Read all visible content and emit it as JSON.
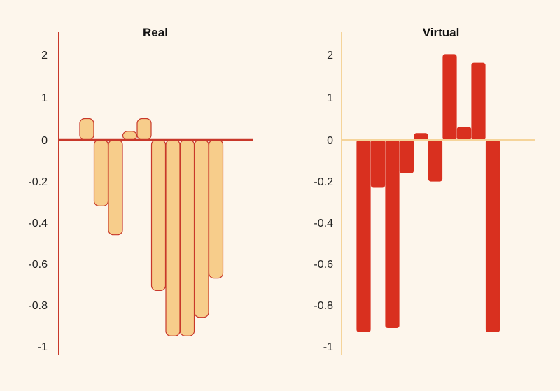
{
  "chart_data": [
    {
      "type": "bar",
      "title": "Real",
      "colors": {
        "bar_fill": "#f7cd8b",
        "bar_stroke": "#c8382a",
        "axis": "#c8382a"
      },
      "y_ticks": [
        "2",
        "1",
        "0",
        "-0.2",
        "-0.4",
        "-0.6",
        "-0.8",
        "-1"
      ],
      "y_tick_values": [
        2,
        1,
        0,
        -0.2,
        -0.4,
        -0.6,
        -0.8,
        -1
      ],
      "values": [
        0.5,
        -0.32,
        -0.46,
        0.2,
        0.5,
        -0.73,
        -0.95,
        -0.95,
        -0.86,
        -0.67
      ]
    },
    {
      "type": "bar",
      "title": "Virtual",
      "colors": {
        "bar_fill": "#d9301f",
        "bar_stroke": "#d9301f",
        "axis": "#f5d49a"
      },
      "y_ticks": [
        "2",
        "1",
        "0",
        "-0.2",
        "-0.4",
        "-0.6",
        "-0.8",
        "-1"
      ],
      "y_tick_values": [
        2,
        1,
        0,
        -0.2,
        -0.4,
        -0.6,
        -0.8,
        -1
      ],
      "values": [
        -0.93,
        -0.23,
        -0.91,
        -0.16,
        0.15,
        -0.2,
        2.0,
        0.3,
        1.8,
        -0.93
      ]
    }
  ]
}
